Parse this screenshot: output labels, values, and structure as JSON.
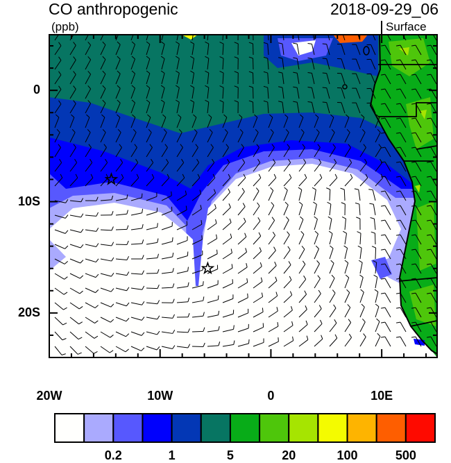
{
  "header": {
    "title": "CO anthropogenic",
    "units": "(ppb)",
    "datetime": "2018-09-29_06",
    "level": "Surface"
  },
  "axes": {
    "x_ticks": [
      {
        "label": "20W",
        "lon": -20
      },
      {
        "label": "10W",
        "lon": -10
      },
      {
        "label": "0",
        "lon": 0
      },
      {
        "label": "10E",
        "lon": 10
      }
    ],
    "y_ticks": [
      {
        "label": "0",
        "lat": 0
      },
      {
        "label": "10S",
        "lat": -10
      },
      {
        "label": "20S",
        "lat": -20
      }
    ],
    "lon_range": [
      -20,
      15
    ],
    "lat_range": [
      -24,
      5
    ]
  },
  "markers": [
    {
      "type": "star",
      "lon": -14.4,
      "lat": -8.0
    },
    {
      "type": "star",
      "lon": -5.7,
      "lat": -16.0
    }
  ],
  "colorbar": {
    "colors": [
      "#fffffd",
      "#aaaafe",
      "#5758fe",
      "#0000fd",
      "#0337b5",
      "#077562",
      "#08ac18",
      "#4ec60b",
      "#a6e401",
      "#f4fb00",
      "#feb400",
      "#fe5e00",
      "#fe0a00"
    ],
    "labels": [
      "0.2",
      "1",
      "5",
      "20",
      "100",
      "500"
    ]
  },
  "colors": {
    "ocean_background": "#077562",
    "land": "#08ac18"
  }
}
